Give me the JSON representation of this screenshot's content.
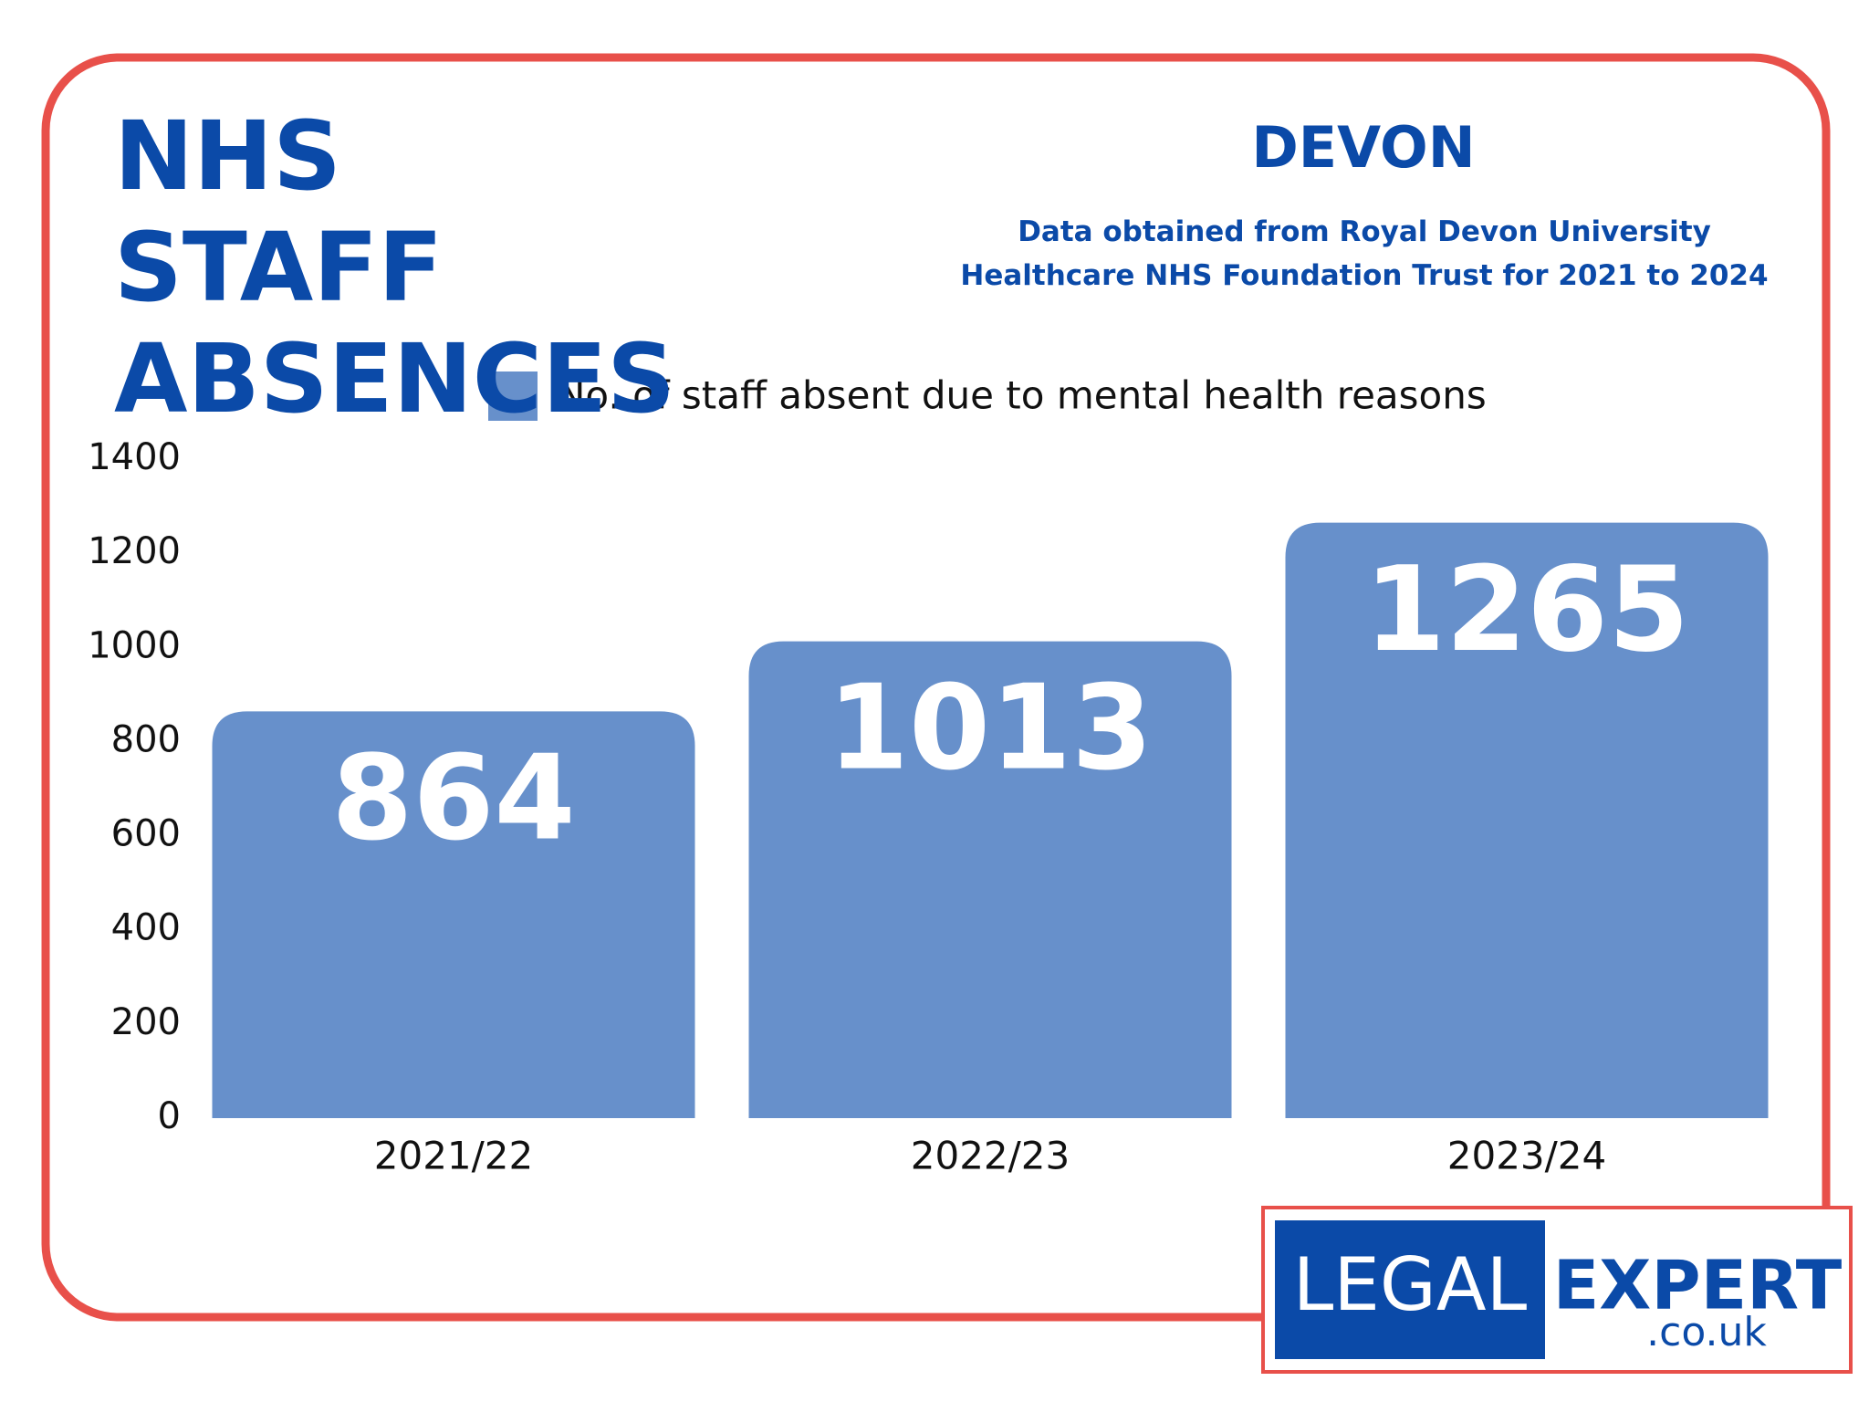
{
  "header": {
    "title": "NHS STAFF ABSENCES",
    "region": "DEVON",
    "note": "Data obtained from Royal Devon University Healthcare NHS Foundation Trust for 2021 to 2024"
  },
  "chart_data": {
    "type": "bar",
    "categories": [
      "2021/22",
      "2022/23",
      "2023/24"
    ],
    "series": [
      {
        "name": "No. of staff absent due to mental health reasons",
        "color": "#6790cb",
        "values": [
          864,
          1013,
          1265
        ]
      }
    ],
    "ylim": [
      0,
      1400
    ],
    "yticks": [
      0,
      200,
      400,
      600,
      800,
      1000,
      1200,
      1400
    ],
    "grid": false,
    "legend": "top"
  },
  "logo": {
    "left": "LEGAL",
    "right": "EXPERT",
    "domain": ".co.uk"
  }
}
